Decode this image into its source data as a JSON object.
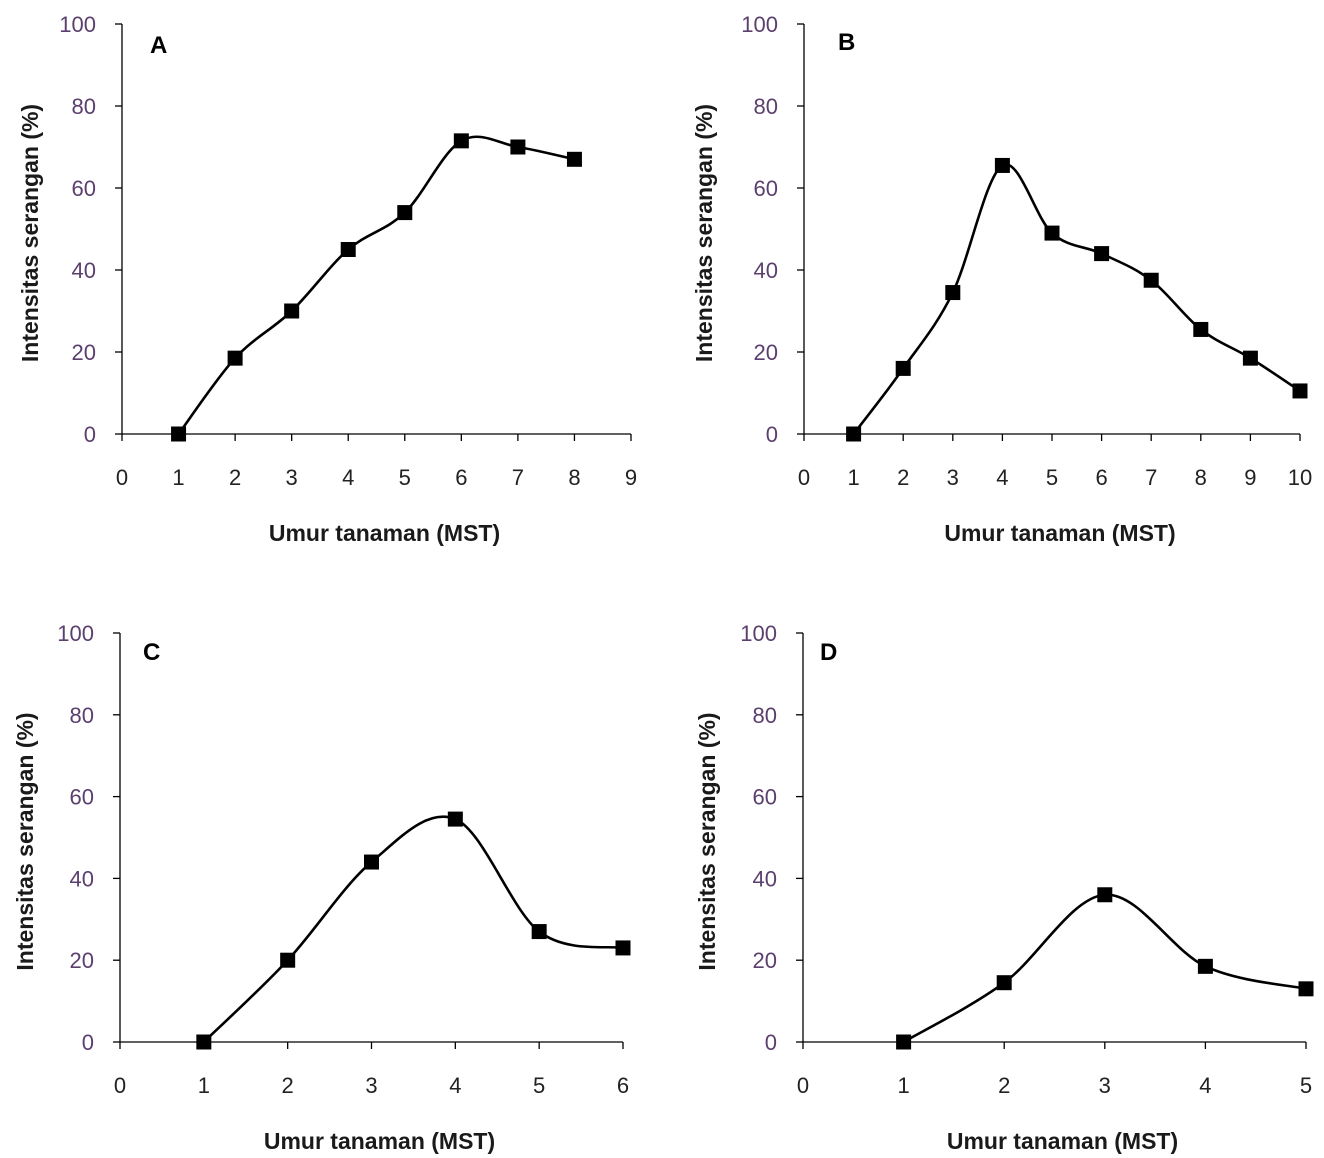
{
  "chart_data": [
    {
      "type": "line",
      "panel_label": "A",
      "xlabel": "Umur tanaman (MST)",
      "ylabel": "Intensitas serangan (%)",
      "xlim": [
        0,
        9
      ],
      "ylim": [
        0,
        100
      ],
      "xticks": [
        "0",
        "1",
        "2",
        "3",
        "4",
        "5",
        "6",
        "7",
        "8",
        "9"
      ],
      "yticks": [
        "0",
        "20",
        "40",
        "60",
        "80",
        "100"
      ],
      "x": [
        1,
        2,
        3,
        4,
        5,
        6,
        7,
        8
      ],
      "values": [
        0,
        18.5,
        30,
        45,
        54,
        71.5,
        70,
        67
      ],
      "marker": "square",
      "smooth": true,
      "grid": false
    },
    {
      "type": "line",
      "panel_label": "B",
      "xlabel": "Umur tanaman (MST)",
      "ylabel": "Intensitas serangan (%)",
      "xlim": [
        0,
        10
      ],
      "ylim": [
        0,
        100
      ],
      "xticks": [
        "0",
        "1",
        "2",
        "3",
        "4",
        "5",
        "6",
        "7",
        "8",
        "9",
        "10"
      ],
      "yticks": [
        "0",
        "20",
        "40",
        "60",
        "80",
        "100"
      ],
      "x": [
        1,
        2,
        3,
        4,
        5,
        6,
        7,
        8,
        9,
        10
      ],
      "values": [
        0,
        16,
        34.5,
        65.5,
        49,
        44,
        37.5,
        25.5,
        18.5,
        10.5
      ],
      "marker": "square",
      "smooth": true,
      "grid": false
    },
    {
      "type": "line",
      "panel_label": "C",
      "xlabel": "Umur tanaman (MST)",
      "ylabel": "Intensitas serangan (%)",
      "xlim": [
        0,
        6
      ],
      "ylim": [
        0,
        100
      ],
      "xticks": [
        "0",
        "1",
        "2",
        "3",
        "4",
        "5",
        "6"
      ],
      "yticks": [
        "0",
        "20",
        "40",
        "60",
        "80",
        "100"
      ],
      "x": [
        1,
        2,
        3,
        4,
        5,
        6
      ],
      "values": [
        0,
        20,
        44,
        54.5,
        27,
        23
      ],
      "marker": "square",
      "smooth": true,
      "grid": false
    },
    {
      "type": "line",
      "panel_label": "D",
      "xlabel": "Umur tanaman (MST)",
      "ylabel": "Intensitas serangan (%)",
      "xlim": [
        0,
        5
      ],
      "ylim": [
        0,
        100
      ],
      "xticks": [
        "0",
        "1",
        "2",
        "3",
        "4",
        "5"
      ],
      "yticks": [
        "0",
        "20",
        "40",
        "60",
        "80",
        "100"
      ],
      "x": [
        1,
        2,
        3,
        4,
        5
      ],
      "values": [
        0,
        14.5,
        36,
        18.5,
        13
      ],
      "marker": "square",
      "smooth": true,
      "grid": false
    }
  ]
}
